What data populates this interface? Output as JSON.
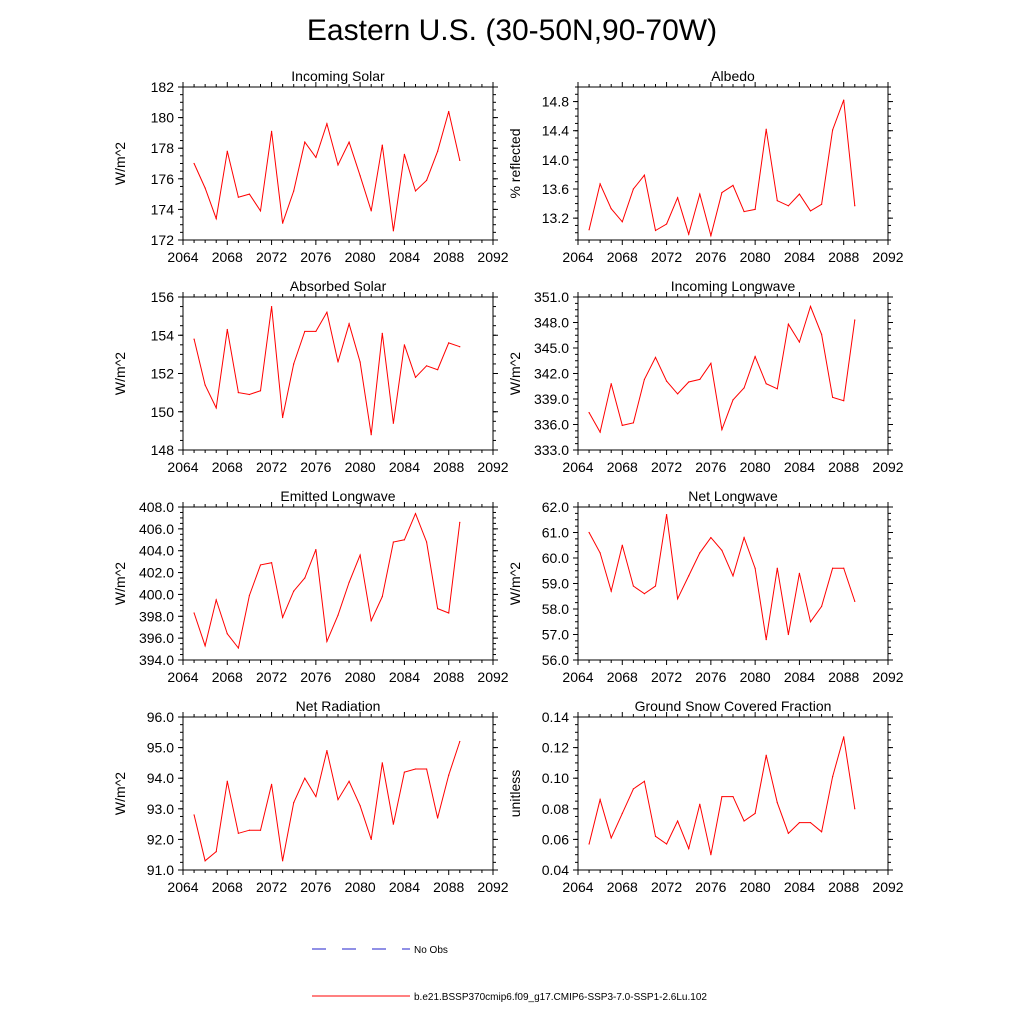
{
  "page": {
    "title": "Eastern U.S. (30-50N,90-70W)"
  },
  "legend": {
    "obs_label": "No Obs",
    "model_label": "b.e21.BSSP370cmip6.f09_g17.CMIP6-SSP3-7.0-SSP1-2.6Lu.102",
    "obs_color": "#2222cc",
    "model_color": "#ff0000"
  },
  "colors": {
    "series": "#ff0000",
    "axis": "#000000"
  },
  "chart_data": [
    {
      "type": "line",
      "title": "Incoming Solar",
      "ylabel": "W/m^2",
      "xlim": [
        2064,
        2092
      ],
      "ylim": [
        172,
        182
      ],
      "xticks": [
        2064,
        2068,
        2072,
        2076,
        2080,
        2084,
        2088,
        2092
      ],
      "yticks": [
        "172",
        "174",
        "176",
        "178",
        "180",
        "182"
      ],
      "x": [
        2065,
        2066,
        2067,
        2068,
        2069,
        2070,
        2071,
        2072,
        2073,
        2074,
        2075,
        2076,
        2077,
        2078,
        2079,
        2080,
        2081,
        2082,
        2083,
        2084,
        2085,
        2086,
        2087,
        2088,
        2089
      ],
      "values": [
        177.0,
        175.4,
        173.4,
        177.8,
        174.8,
        175.0,
        173.9,
        179.1,
        173.1,
        175.2,
        178.4,
        177.4,
        179.6,
        176.9,
        178.4,
        176.2,
        173.9,
        178.2,
        172.6,
        177.6,
        175.2,
        175.9,
        177.8,
        180.4,
        177.2
      ]
    },
    {
      "type": "line",
      "title": "Albedo",
      "ylabel": "% reflected",
      "xlim": [
        2064,
        2092
      ],
      "ylim": [
        12.9,
        15.0
      ],
      "xticks": [
        2064,
        2068,
        2072,
        2076,
        2080,
        2084,
        2088,
        2092
      ],
      "yticks": [
        "13.2",
        "13.6",
        "14.0",
        "14.4",
        "14.8"
      ],
      "x": [
        2065,
        2066,
        2067,
        2068,
        2069,
        2070,
        2071,
        2072,
        2073,
        2074,
        2075,
        2076,
        2077,
        2078,
        2079,
        2080,
        2081,
        2082,
        2083,
        2084,
        2085,
        2086,
        2087,
        2088,
        2089
      ],
      "values": [
        13.04,
        13.67,
        13.33,
        13.15,
        13.6,
        13.79,
        13.03,
        13.12,
        13.48,
        12.98,
        13.53,
        12.96,
        13.55,
        13.65,
        13.29,
        13.32,
        14.42,
        13.44,
        13.37,
        13.53,
        13.3,
        13.39,
        14.41,
        14.82,
        13.37
      ]
    },
    {
      "type": "line",
      "title": "Absorbed Solar",
      "ylabel": "W/m^2",
      "xlim": [
        2064,
        2092
      ],
      "ylim": [
        148,
        156
      ],
      "xticks": [
        2064,
        2068,
        2072,
        2076,
        2080,
        2084,
        2088,
        2092
      ],
      "yticks": [
        "148",
        "150",
        "152",
        "154",
        "156"
      ],
      "x": [
        2065,
        2066,
        2067,
        2068,
        2069,
        2070,
        2071,
        2072,
        2073,
        2074,
        2075,
        2076,
        2077,
        2078,
        2079,
        2080,
        2081,
        2082,
        2083,
        2084,
        2085,
        2086,
        2087,
        2088,
        2089
      ],
      "values": [
        153.8,
        151.4,
        150.2,
        154.3,
        151.0,
        150.9,
        151.1,
        155.5,
        149.7,
        152.5,
        154.2,
        154.2,
        155.2,
        152.6,
        154.6,
        152.6,
        148.8,
        154.1,
        149.4,
        153.5,
        151.8,
        152.4,
        152.2,
        153.6,
        153.4
      ]
    },
    {
      "type": "line",
      "title": "Incoming Longwave",
      "ylabel": "W/m^2",
      "xlim": [
        2064,
        2092
      ],
      "ylim": [
        333,
        351
      ],
      "xticks": [
        2064,
        2068,
        2072,
        2076,
        2080,
        2084,
        2088,
        2092
      ],
      "yticks": [
        "333.0",
        "336.0",
        "339.0",
        "342.0",
        "345.0",
        "348.0",
        "351.0"
      ],
      "x": [
        2065,
        2066,
        2067,
        2068,
        2069,
        2070,
        2071,
        2072,
        2073,
        2074,
        2075,
        2076,
        2077,
        2078,
        2079,
        2080,
        2081,
        2082,
        2083,
        2084,
        2085,
        2086,
        2087,
        2088,
        2089
      ],
      "values": [
        337.4,
        335.1,
        340.8,
        335.9,
        336.2,
        341.3,
        343.9,
        341.1,
        339.6,
        341.0,
        341.3,
        343.2,
        335.4,
        338.9,
        340.3,
        344.0,
        340.8,
        340.2,
        347.8,
        345.7,
        349.9,
        346.6,
        339.2,
        338.8,
        348.3
      ]
    },
    {
      "type": "line",
      "title": "Emitted Longwave",
      "ylabel": "W/m^2",
      "xlim": [
        2064,
        2092
      ],
      "ylim": [
        394,
        408
      ],
      "xticks": [
        2064,
        2068,
        2072,
        2076,
        2080,
        2084,
        2088,
        2092
      ],
      "yticks": [
        "394.0",
        "396.0",
        "398.0",
        "400.0",
        "402.0",
        "404.0",
        "406.0",
        "408.0"
      ],
      "x": [
        2065,
        2066,
        2067,
        2068,
        2069,
        2070,
        2071,
        2072,
        2073,
        2074,
        2075,
        2076,
        2077,
        2078,
        2079,
        2080,
        2081,
        2082,
        2083,
        2084,
        2085,
        2086,
        2087,
        2088,
        2089
      ],
      "values": [
        398.3,
        395.3,
        399.5,
        396.4,
        395.1,
        399.9,
        402.7,
        402.9,
        397.9,
        400.3,
        401.5,
        404.1,
        395.7,
        398.1,
        401.1,
        403.6,
        397.6,
        399.8,
        404.8,
        405.0,
        407.4,
        404.8,
        398.7,
        398.3,
        406.6
      ]
    },
    {
      "type": "line",
      "title": "Net Longwave",
      "ylabel": "W/m^2",
      "xlim": [
        2064,
        2092
      ],
      "ylim": [
        56,
        62
      ],
      "xticks": [
        2064,
        2068,
        2072,
        2076,
        2080,
        2084,
        2088,
        2092
      ],
      "yticks": [
        "56.0",
        "57.0",
        "58.0",
        "59.0",
        "60.0",
        "61.0",
        "62.0"
      ],
      "x": [
        2065,
        2066,
        2067,
        2068,
        2069,
        2070,
        2071,
        2072,
        2073,
        2074,
        2075,
        2076,
        2077,
        2078,
        2079,
        2080,
        2081,
        2082,
        2083,
        2084,
        2085,
        2086,
        2087,
        2088,
        2089
      ],
      "values": [
        61.0,
        60.2,
        58.7,
        60.5,
        58.9,
        58.6,
        58.9,
        61.7,
        58.4,
        59.3,
        60.2,
        60.8,
        60.3,
        59.3,
        60.8,
        59.6,
        56.8,
        59.6,
        57.0,
        59.4,
        57.5,
        58.1,
        59.6,
        59.6,
        58.3
      ]
    },
    {
      "type": "line",
      "title": "Net Radiation",
      "ylabel": "W/m^2",
      "xlim": [
        2064,
        2092
      ],
      "ylim": [
        91,
        96
      ],
      "xticks": [
        2064,
        2068,
        2072,
        2076,
        2080,
        2084,
        2088,
        2092
      ],
      "yticks": [
        "91.0",
        "92.0",
        "93.0",
        "94.0",
        "95.0",
        "96.0"
      ],
      "x": [
        2065,
        2066,
        2067,
        2068,
        2069,
        2070,
        2071,
        2072,
        2073,
        2074,
        2075,
        2076,
        2077,
        2078,
        2079,
        2080,
        2081,
        2082,
        2083,
        2084,
        2085,
        2086,
        2087,
        2088,
        2089
      ],
      "values": [
        92.8,
        91.3,
        91.6,
        93.9,
        92.2,
        92.3,
        92.3,
        93.8,
        91.3,
        93.2,
        94.0,
        93.4,
        94.9,
        93.3,
        93.9,
        93.1,
        92.0,
        94.5,
        92.5,
        94.2,
        94.3,
        94.3,
        92.7,
        94.1,
        95.2
      ]
    },
    {
      "type": "line",
      "title": "Ground Snow Covered Fraction",
      "ylabel": "unitless",
      "xlim": [
        2064,
        2092
      ],
      "ylim": [
        0.04,
        0.14
      ],
      "xticks": [
        2064,
        2068,
        2072,
        2076,
        2080,
        2084,
        2088,
        2092
      ],
      "yticks": [
        "0.04",
        "0.06",
        "0.08",
        "0.10",
        "0.12",
        "0.14"
      ],
      "x": [
        2065,
        2066,
        2067,
        2068,
        2069,
        2070,
        2071,
        2072,
        2073,
        2074,
        2075,
        2076,
        2077,
        2078,
        2079,
        2080,
        2081,
        2082,
        2083,
        2084,
        2085,
        2086,
        2087,
        2088,
        2089
      ],
      "values": [
        0.057,
        0.086,
        0.061,
        0.077,
        0.093,
        0.098,
        0.062,
        0.057,
        0.072,
        0.054,
        0.083,
        0.05,
        0.088,
        0.088,
        0.072,
        0.077,
        0.115,
        0.084,
        0.064,
        0.071,
        0.071,
        0.065,
        0.101,
        0.127,
        0.08
      ]
    }
  ]
}
